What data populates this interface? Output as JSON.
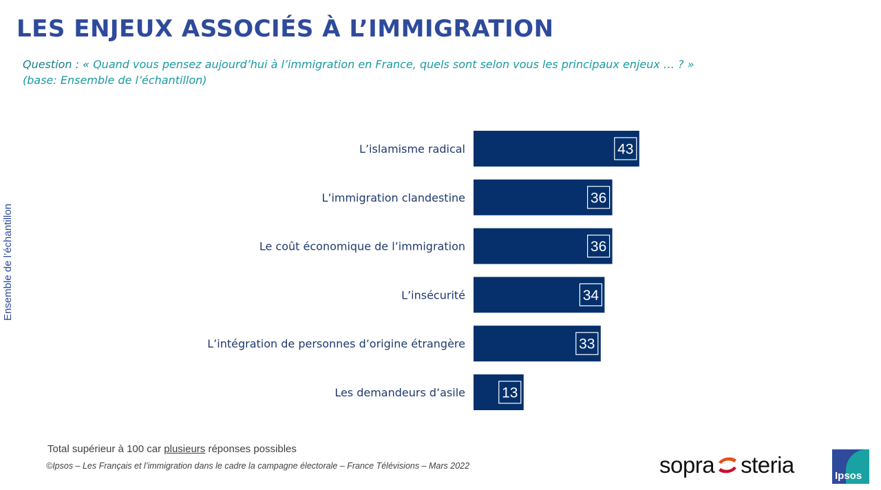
{
  "header": {
    "title": "LES ENJEUX ASSOCIÉS À L’IMMIGRATION",
    "question_label": "Question : «",
    "question_text": " Quand vous pensez aujourd’hui à l’immigration en France, quels sont selon vous les principaux enjeux … ? »",
    "base": "(base: Ensemble de l’échantillon)"
  },
  "side_label": "Ensemble de l’échantillon",
  "chart_data": {
    "type": "bar",
    "orientation": "horizontal",
    "categories": [
      "L’islamisme radical",
      "L’immigration clandestine",
      "Le coût économique de l’immigration",
      "L’insécurité",
      "L’intégration de personnes d’origine étrangère",
      "Les demandeurs d’asile"
    ],
    "values": [
      43,
      36,
      36,
      34,
      33,
      13
    ],
    "title": "",
    "xlabel": "",
    "ylabel": "",
    "xlim": [
      0,
      100
    ],
    "grid": false,
    "bar_color": "#05306b",
    "label_color": "#ffffff"
  },
  "footer": {
    "note_before": "Total supérieur à 100 car ",
    "note_underlined": "plusieurs",
    "note_after": " réponses possibles",
    "copyright": "©Ipsos – Les Français et l’immigration dans le cadre la campagne électorale  – France Télévisions – Mars 2022"
  },
  "logos": {
    "sopra_left": "sopra",
    "sopra_right": "steria",
    "ipsos": "Ipsos"
  }
}
